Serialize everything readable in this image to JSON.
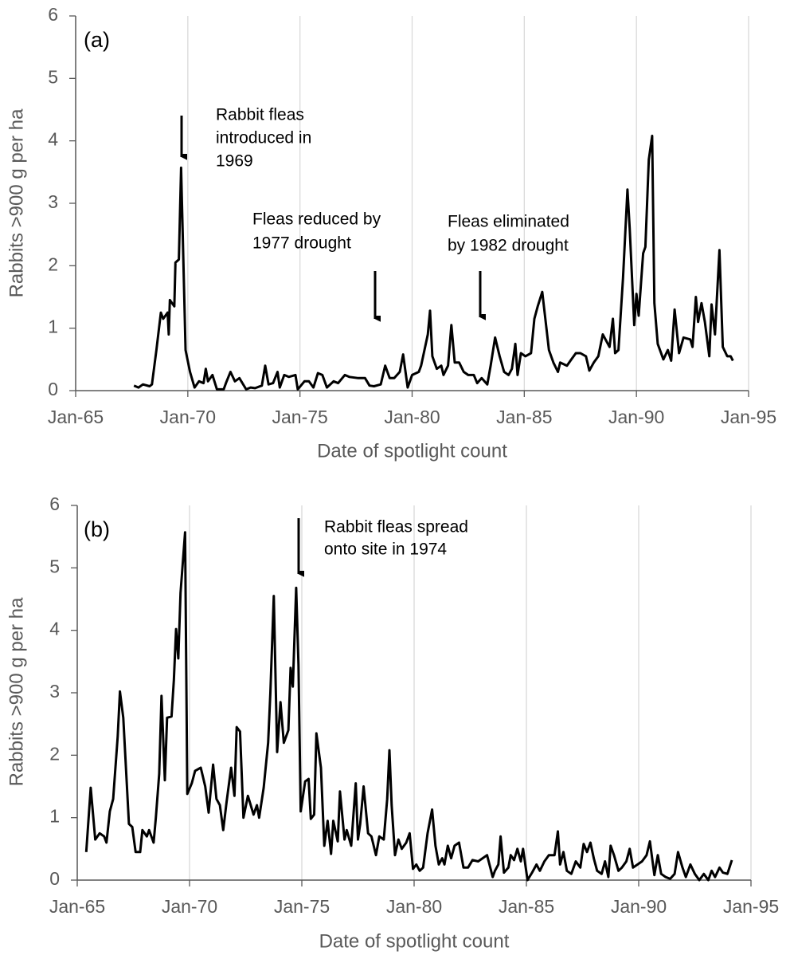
{
  "chart_data": [
    {
      "type": "line",
      "panel_label": "(a)",
      "x_label": "Date of spotlight count",
      "y_label": "Rabbits >900 g per ha",
      "xlim": [
        1965,
        1995
      ],
      "xticks": [
        {
          "value": 1965,
          "label": "Jan-65"
        },
        {
          "value": 1970,
          "label": "Jan-70"
        },
        {
          "value": 1975,
          "label": "Jan-75"
        },
        {
          "value": 1980,
          "label": "Jan-80"
        },
        {
          "value": 1985,
          "label": "Jan-85"
        },
        {
          "value": 1990,
          "label": "Jan-90"
        },
        {
          "value": 1995,
          "label": "Jan-95"
        }
      ],
      "ylim": [
        0,
        6
      ],
      "yticks": [
        0,
        1,
        2,
        3,
        4,
        5,
        6
      ],
      "grid": "x",
      "color": "#000000",
      "annotations": [
        {
          "lines": [
            "Rabbit fleas",
            "introduced in",
            "1969"
          ]
        },
        {
          "lines": [
            "Fleas reduced by",
            "1977 drought"
          ]
        },
        {
          "lines": [
            "Fleas eliminated",
            "by 1982 drought"
          ]
        }
      ],
      "x": [
        1967.6,
        1967.8,
        1968.0,
        1968.3,
        1968.4,
        1968.6,
        1968.8,
        1968.9,
        1969.1,
        1969.15,
        1969.2,
        1969.4,
        1969.45,
        1969.6,
        1969.7,
        1969.9,
        1970.1,
        1970.3,
        1970.5,
        1970.7,
        1970.8,
        1970.9,
        1971.1,
        1971.3,
        1971.6,
        1971.7,
        1971.9,
        1972.1,
        1972.3,
        1972.6,
        1972.8,
        1973.0,
        1973.3,
        1973.45,
        1973.6,
        1973.8,
        1974.0,
        1974.1,
        1974.3,
        1974.5,
        1974.8,
        1974.9,
        1975.2,
        1975.4,
        1975.6,
        1975.8,
        1976.0,
        1976.2,
        1976.5,
        1976.7,
        1977.0,
        1977.2,
        1977.6,
        1977.9,
        1978.1,
        1978.3,
        1978.6,
        1978.8,
        1979.0,
        1979.2,
        1979.45,
        1979.6,
        1979.8,
        1980.0,
        1980.3,
        1980.4,
        1980.7,
        1980.8,
        1980.9,
        1981.1,
        1981.3,
        1981.4,
        1981.6,
        1981.75,
        1981.9,
        1982.1,
        1982.3,
        1982.5,
        1982.75,
        1982.9,
        1983.1,
        1983.35,
        1983.5,
        1983.7,
        1983.9,
        1984.1,
        1984.3,
        1984.45,
        1984.6,
        1984.7,
        1984.85,
        1985.05,
        1985.3,
        1985.45,
        1985.6,
        1985.8,
        1986.1,
        1986.3,
        1986.5,
        1986.6,
        1986.9,
        1987.1,
        1987.3,
        1987.5,
        1987.75,
        1987.9,
        1988.1,
        1988.3,
        1988.5,
        1988.8,
        1988.95,
        1989.05,
        1989.2,
        1989.4,
        1989.6,
        1989.7,
        1989.9,
        1990.0,
        1990.1,
        1990.3,
        1990.4,
        1990.55,
        1990.7,
        1990.8,
        1990.95,
        1991.2,
        1991.4,
        1991.55,
        1991.7,
        1991.9,
        1992.1,
        1992.4,
        1992.5,
        1992.65,
        1992.75,
        1992.9,
        1993.05,
        1993.25,
        1993.35,
        1993.5,
        1993.7,
        1993.85,
        1994.05,
        1994.2,
        1994.3
      ],
      "values": [
        0.08,
        0.05,
        0.1,
        0.07,
        0.1,
        0.65,
        1.25,
        1.15,
        1.25,
        0.9,
        1.45,
        1.35,
        2.05,
        2.1,
        3.57,
        0.65,
        0.3,
        0.05,
        0.15,
        0.12,
        0.35,
        0.15,
        0.25,
        0.02,
        0.02,
        0.12,
        0.3,
        0.15,
        0.2,
        0.02,
        0.05,
        0.04,
        0.08,
        0.4,
        0.1,
        0.12,
        0.3,
        0.05,
        0.25,
        0.22,
        0.25,
        0.02,
        0.15,
        0.15,
        0.05,
        0.28,
        0.25,
        0.05,
        0.15,
        0.12,
        0.25,
        0.22,
        0.2,
        0.2,
        0.08,
        0.07,
        0.1,
        0.4,
        0.2,
        0.2,
        0.3,
        0.58,
        0.05,
        0.25,
        0.3,
        0.4,
        0.9,
        1.28,
        0.55,
        0.35,
        0.4,
        0.25,
        0.4,
        1.05,
        0.45,
        0.45,
        0.3,
        0.25,
        0.25,
        0.12,
        0.2,
        0.1,
        0.4,
        0.85,
        0.55,
        0.3,
        0.25,
        0.35,
        0.75,
        0.25,
        0.6,
        0.55,
        0.6,
        1.15,
        1.35,
        1.58,
        0.65,
        0.45,
        0.3,
        0.45,
        0.4,
        0.5,
        0.6,
        0.6,
        0.55,
        0.32,
        0.45,
        0.55,
        0.9,
        0.7,
        1.15,
        0.6,
        0.65,
        1.8,
        3.22,
        2.6,
        1.05,
        1.55,
        1.2,
        2.2,
        2.3,
        3.7,
        4.08,
        1.4,
        0.75,
        0.5,
        0.65,
        0.48,
        1.3,
        0.6,
        0.85,
        0.82,
        0.7,
        1.5,
        1.1,
        1.4,
        1.1,
        0.55,
        1.38,
        0.9,
        2.25,
        0.7,
        0.55,
        0.55,
        0.48
      ]
    },
    {
      "type": "line",
      "panel_label": "(b)",
      "x_label": "Date of spotlight count",
      "y_label": "Rabbits >900 g per ha",
      "xlim": [
        1965,
        1995
      ],
      "xticks": [
        {
          "value": 1965,
          "label": "Jan-65"
        },
        {
          "value": 1970,
          "label": "Jan-70"
        },
        {
          "value": 1975,
          "label": "Jan-75"
        },
        {
          "value": 1980,
          "label": "Jan-80"
        },
        {
          "value": 1985,
          "label": "Jan-85"
        },
        {
          "value": 1990,
          "label": "Jan-90"
        },
        {
          "value": 1995,
          "label": "Jan-95"
        }
      ],
      "ylim": [
        0,
        6
      ],
      "yticks": [
        0,
        1,
        2,
        3,
        4,
        5,
        6
      ],
      "grid": "x",
      "color": "#000000",
      "annotations": [
        {
          "lines": [
            "Rabbit fleas spread",
            "onto site in 1974"
          ]
        }
      ],
      "x": [
        1965.4,
        1965.6,
        1965.8,
        1966.0,
        1966.2,
        1966.3,
        1966.45,
        1966.6,
        1966.8,
        1966.9,
        1967.05,
        1967.3,
        1967.45,
        1967.6,
        1967.8,
        1967.9,
        1968.1,
        1968.2,
        1968.4,
        1968.5,
        1968.65,
        1968.75,
        1968.9,
        1969.0,
        1969.2,
        1969.3,
        1969.4,
        1969.5,
        1969.6,
        1969.8,
        1969.9,
        1970.1,
        1970.25,
        1970.5,
        1970.7,
        1970.85,
        1971.05,
        1971.2,
        1971.35,
        1971.5,
        1971.65,
        1971.85,
        1972.0,
        1972.1,
        1972.25,
        1972.4,
        1972.6,
        1972.85,
        1973.0,
        1973.1,
        1973.3,
        1973.5,
        1973.6,
        1973.75,
        1973.9,
        1974.05,
        1974.2,
        1974.4,
        1974.5,
        1974.6,
        1974.75,
        1974.85,
        1974.95,
        1975.15,
        1975.3,
        1975.4,
        1975.55,
        1975.65,
        1975.85,
        1976.0,
        1976.15,
        1976.3,
        1976.4,
        1976.6,
        1976.7,
        1976.9,
        1977.0,
        1977.2,
        1977.4,
        1977.5,
        1977.6,
        1977.75,
        1977.95,
        1978.1,
        1978.3,
        1978.45,
        1978.65,
        1978.8,
        1978.9,
        1979.0,
        1979.15,
        1979.3,
        1979.45,
        1979.65,
        1979.8,
        1979.95,
        1980.1,
        1980.25,
        1980.4,
        1980.6,
        1980.8,
        1980.95,
        1981.1,
        1981.25,
        1981.35,
        1981.5,
        1981.65,
        1981.8,
        1982.0,
        1982.2,
        1982.4,
        1982.6,
        1982.85,
        1983.05,
        1983.25,
        1983.5,
        1983.6,
        1983.75,
        1983.85,
        1984.0,
        1984.2,
        1984.3,
        1984.45,
        1984.6,
        1984.75,
        1984.85,
        1985.05,
        1985.25,
        1985.45,
        1985.6,
        1985.8,
        1986.0,
        1986.25,
        1986.4,
        1986.5,
        1986.65,
        1986.8,
        1987.0,
        1987.2,
        1987.4,
        1987.55,
        1987.7,
        1987.85,
        1988.0,
        1988.15,
        1988.35,
        1988.5,
        1988.65,
        1988.75,
        1988.9,
        1989.1,
        1989.25,
        1989.45,
        1989.6,
        1989.75,
        1989.95,
        1990.15,
        1990.35,
        1990.5,
        1990.7,
        1990.85,
        1991.0,
        1991.2,
        1991.4,
        1991.6,
        1991.75,
        1991.95,
        1992.1,
        1992.3,
        1992.5,
        1992.7,
        1992.9,
        1993.1,
        1993.25,
        1993.4,
        1993.6,
        1993.75,
        1993.95,
        1994.15
      ],
      "values": [
        0.45,
        1.48,
        0.65,
        0.75,
        0.7,
        0.6,
        1.1,
        1.3,
        2.3,
        3.02,
        2.6,
        0.9,
        0.85,
        0.45,
        0.45,
        0.8,
        0.7,
        0.8,
        0.6,
        1.0,
        1.7,
        2.95,
        1.6,
        2.6,
        2.62,
        3.2,
        4.02,
        3.55,
        4.6,
        5.57,
        1.38,
        1.55,
        1.75,
        1.8,
        1.5,
        1.08,
        1.85,
        1.3,
        1.2,
        0.8,
        1.25,
        1.8,
        1.35,
        2.45,
        2.38,
        1.0,
        1.35,
        1.05,
        1.2,
        1.0,
        1.48,
        2.2,
        3.0,
        4.55,
        2.05,
        2.85,
        2.2,
        2.4,
        3.4,
        3.1,
        4.68,
        3.45,
        1.1,
        1.58,
        1.62,
        0.98,
        1.05,
        2.35,
        1.8,
        0.55,
        0.95,
        0.42,
        0.95,
        0.62,
        1.42,
        0.65,
        0.8,
        0.55,
        1.55,
        0.65,
        0.9,
        1.5,
        0.75,
        0.7,
        0.4,
        0.7,
        0.65,
        1.3,
        2.08,
        1.2,
        0.4,
        0.65,
        0.5,
        0.6,
        0.75,
        0.18,
        0.25,
        0.15,
        0.2,
        0.75,
        1.13,
        0.55,
        0.25,
        0.35,
        0.25,
        0.55,
        0.35,
        0.55,
        0.6,
        0.2,
        0.2,
        0.32,
        0.3,
        0.35,
        0.4,
        0.05,
        0.15,
        0.25,
        0.7,
        0.12,
        0.2,
        0.4,
        0.32,
        0.5,
        0.3,
        0.5,
        0.0,
        0.12,
        0.25,
        0.15,
        0.3,
        0.4,
        0.4,
        0.78,
        0.25,
        0.45,
        0.15,
        0.1,
        0.3,
        0.2,
        0.58,
        0.45,
        0.6,
        0.35,
        0.15,
        0.1,
        0.3,
        0.05,
        0.55,
        0.4,
        0.15,
        0.2,
        0.3,
        0.5,
        0.2,
        0.25,
        0.3,
        0.4,
        0.62,
        0.08,
        0.4,
        0.1,
        0.05,
        0.02,
        0.1,
        0.45,
        0.2,
        0.05,
        0.25,
        0.1,
        0.0,
        0.1,
        0.0,
        0.15,
        0.05,
        0.2,
        0.12,
        0.1,
        0.32
      ]
    }
  ]
}
